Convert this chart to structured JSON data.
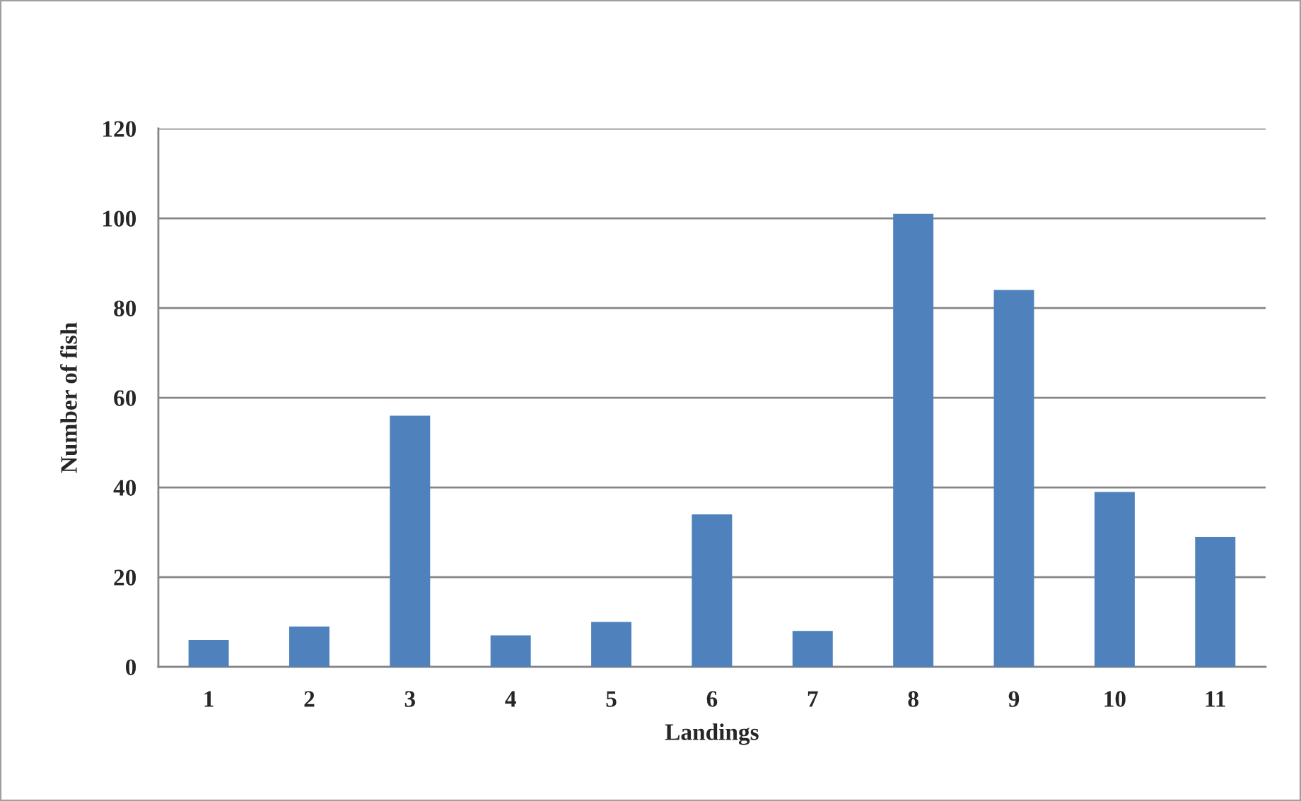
{
  "chart_data": {
    "type": "bar",
    "xlabel": "Landings",
    "ylabel": "Number of fish",
    "categories": [
      "1",
      "2",
      "3",
      "4",
      "5",
      "6",
      "7",
      "8",
      "9",
      "10",
      "11"
    ],
    "values": [
      6,
      9,
      56,
      7,
      10,
      34,
      8,
      101,
      84,
      39,
      29
    ],
    "color": "#4f81bd",
    "ylim": [
      0,
      120
    ],
    "yticks": [
      0,
      20,
      40,
      60,
      80,
      100,
      120
    ],
    "grid": "y"
  }
}
